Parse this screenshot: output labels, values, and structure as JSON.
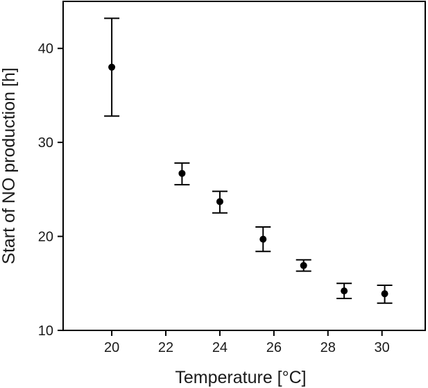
{
  "chart_data": {
    "type": "scatter",
    "title": "",
    "xlabel": "Temperature [°C]",
    "ylabel": "Start of NO production [h]",
    "xlim": [
      18.2,
      31.6
    ],
    "ylim": [
      10,
      45
    ],
    "xticks": [
      20,
      22,
      24,
      26,
      28,
      30
    ],
    "yticks": [
      10,
      20,
      30,
      40
    ],
    "grid": false,
    "legend": "none",
    "error_bars": true,
    "series": [
      {
        "color": "#000000",
        "points": [
          {
            "x": 20.0,
            "y": 38.0,
            "err_low": 32.8,
            "err_high": 43.2
          },
          {
            "x": 22.6,
            "y": 26.7,
            "err_low": 25.5,
            "err_high": 27.8
          },
          {
            "x": 24.0,
            "y": 23.7,
            "err_low": 22.5,
            "err_high": 24.8
          },
          {
            "x": 25.6,
            "y": 19.7,
            "err_low": 18.4,
            "err_high": 21.0
          },
          {
            "x": 27.1,
            "y": 16.9,
            "err_low": 16.3,
            "err_high": 17.5
          },
          {
            "x": 28.6,
            "y": 14.2,
            "err_low": 13.4,
            "err_high": 15.0
          },
          {
            "x": 30.1,
            "y": 13.9,
            "err_low": 12.9,
            "err_high": 14.8
          }
        ]
      }
    ]
  }
}
